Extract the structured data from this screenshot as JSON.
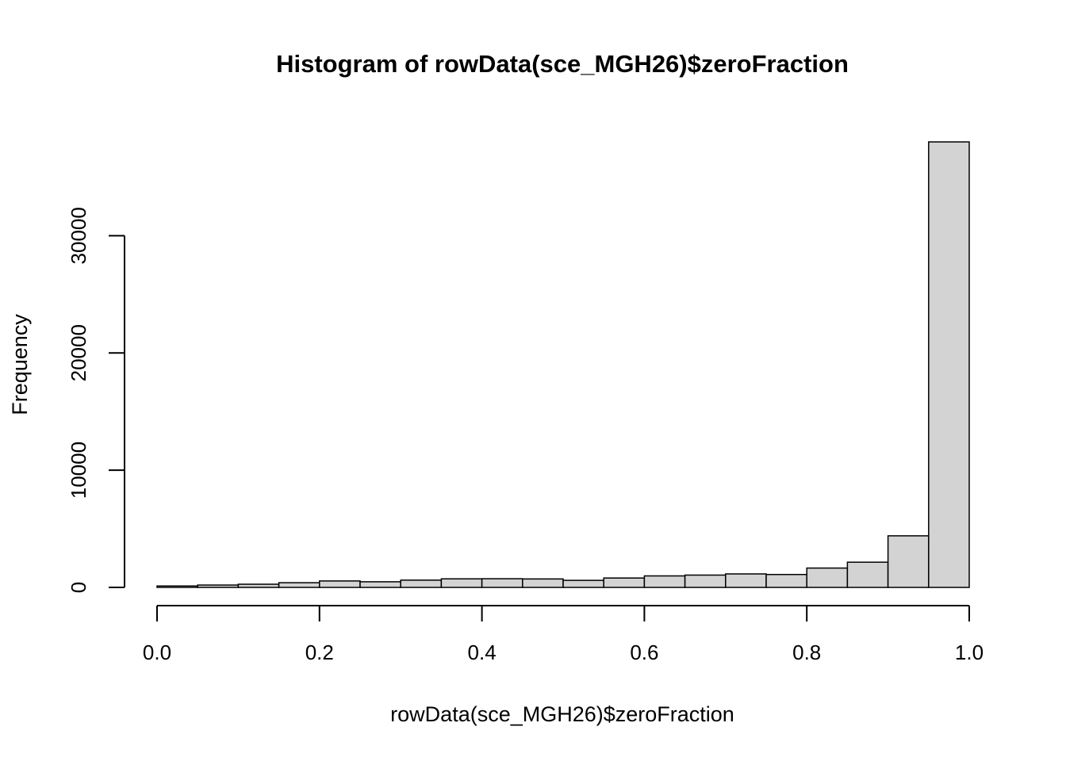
{
  "chart_data": {
    "type": "bar",
    "title": "Histogram of rowData(sce_MGH26)$zeroFraction",
    "xlabel": "rowData(sce_MGH26)$zeroFraction",
    "ylabel": "Frequency",
    "bar_color": "#d3d3d3",
    "edge_color": "#000000",
    "xlim": [
      0,
      1
    ],
    "ylim": [
      0,
      38000
    ],
    "x_ticks": [
      {
        "value": 0.0,
        "label": "0.0"
      },
      {
        "value": 0.2,
        "label": "0.2"
      },
      {
        "value": 0.4,
        "label": "0.4"
      },
      {
        "value": 0.6,
        "label": "0.6"
      },
      {
        "value": 0.8,
        "label": "0.8"
      },
      {
        "value": 1.0,
        "label": "1.0"
      }
    ],
    "y_ticks": [
      {
        "value": 0,
        "label": "0"
      },
      {
        "value": 10000,
        "label": "10000"
      },
      {
        "value": 20000,
        "label": "20000"
      },
      {
        "value": 30000,
        "label": "30000"
      }
    ],
    "bin_edges": [
      0,
      0.05,
      0.1,
      0.15,
      0.2,
      0.25,
      0.3,
      0.35,
      0.4,
      0.45,
      0.5,
      0.55,
      0.6,
      0.65,
      0.7,
      0.75,
      0.8,
      0.85,
      0.9,
      0.95,
      1.0
    ],
    "values": [
      120,
      200,
      270,
      400,
      550,
      480,
      620,
      730,
      740,
      720,
      600,
      800,
      980,
      1050,
      1150,
      1100,
      1650,
      2150,
      4400,
      38000
    ],
    "grid": false,
    "legend": "none"
  }
}
